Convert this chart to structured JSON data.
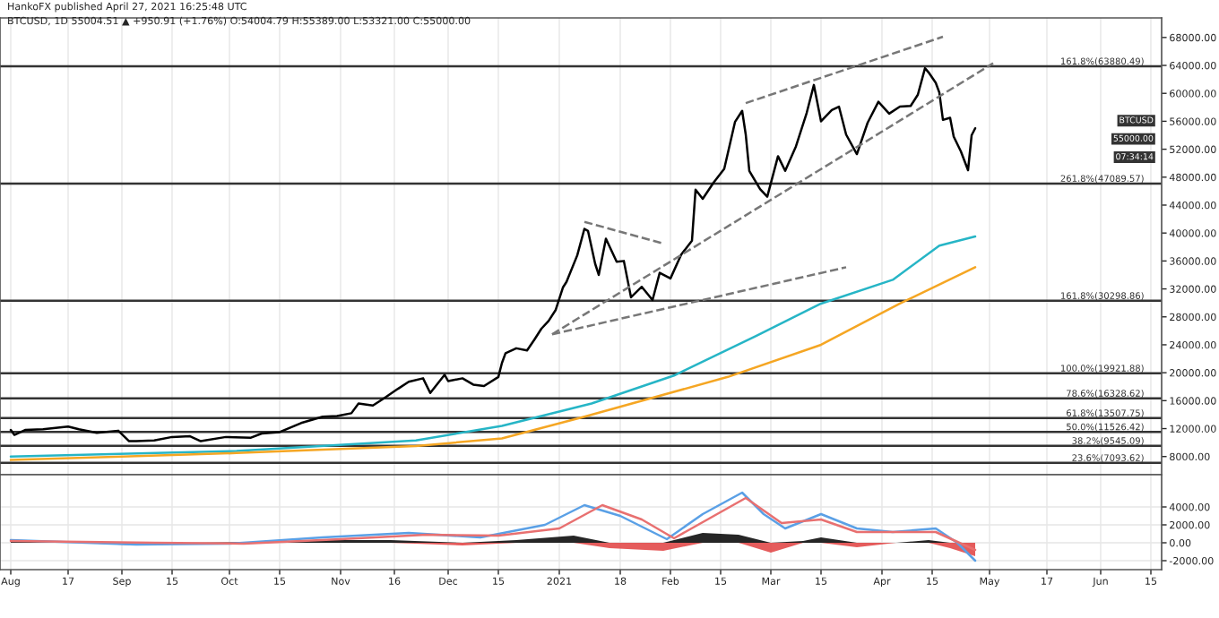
{
  "chart_data": [
    {
      "type": "line",
      "title": "BTCUSD, 1D 55004.51 ▲ +950.91 (+1.76%) O:54004.79 H:55389.00 L:53321.00 C:55000.00",
      "subtitle": "HankoFX published April 27, 2021 16:25:48 UTC",
      "series": [
        {
          "color": "#000000",
          "x": [
            "2020-08-01",
            "2020-08-02",
            "2020-08-05",
            "2020-08-10",
            "2020-08-17",
            "2020-08-20",
            "2020-08-25",
            "2020-08-31",
            "2020-09-03",
            "2020-09-05",
            "2020-09-10",
            "2020-09-15",
            "2020-09-20",
            "2020-09-23",
            "2020-09-30",
            "2020-10-07",
            "2020-10-10",
            "2020-10-15",
            "2020-10-21",
            "2020-10-27",
            "2020-10-31",
            "2020-11-04",
            "2020-11-06",
            "2020-11-10",
            "2020-11-13",
            "2020-11-17",
            "2020-11-20",
            "2020-11-24",
            "2020-11-26",
            "2020-11-30",
            "2020-12-01",
            "2020-12-05",
            "2020-12-08",
            "2020-12-11",
            "2020-12-15",
            "2020-12-16",
            "2020-12-17",
            "2020-12-20",
            "2020-12-23",
            "2020-12-25",
            "2020-12-27",
            "2020-12-29",
            "2020-12-31",
            "2021-01-02",
            "2021-01-03",
            "2021-01-06",
            "2021-01-08",
            "2021-01-09",
            "2021-01-11",
            "2021-01-12",
            "2021-01-14",
            "2021-01-17",
            "2021-01-19",
            "2021-01-21",
            "2021-01-24",
            "2021-01-27",
            "2021-01-29",
            "2021-02-01",
            "2021-02-04",
            "2021-02-07",
            "2021-02-08",
            "2021-02-10",
            "2021-02-13",
            "2021-02-16",
            "2021-02-19",
            "2021-02-21",
            "2021-02-22",
            "2021-02-23",
            "2021-02-26",
            "2021-02-28",
            "2021-03-03",
            "2021-03-05",
            "2021-03-08",
            "2021-03-11",
            "2021-03-13",
            "2021-03-15",
            "2021-03-18",
            "2021-03-20",
            "2021-03-22",
            "2021-03-25",
            "2021-03-28",
            "2021-03-31",
            "2021-04-03",
            "2021-04-06",
            "2021-04-09",
            "2021-04-11",
            "2021-04-13",
            "2021-04-14",
            "2021-04-16",
            "2021-04-17",
            "2021-04-18",
            "2021-04-20",
            "2021-04-21",
            "2021-04-23",
            "2021-04-25",
            "2021-04-26",
            "2021-04-27"
          ],
          "values": [
            11800,
            11100,
            11800,
            11900,
            12300,
            11900,
            11400,
            11700,
            10200,
            10200,
            10300,
            10800,
            10900,
            10200,
            10800,
            10700,
            11300,
            11500,
            12800,
            13700,
            13800,
            14200,
            15600,
            15300,
            16300,
            17700,
            18700,
            19200,
            17100,
            19700,
            18800,
            19200,
            18300,
            18100,
            19400,
            21400,
            22800,
            23500,
            23200,
            24700,
            26300,
            27400,
            29000,
            32200,
            33000,
            36800,
            40600,
            40300,
            35600,
            34000,
            39200,
            35900,
            36000,
            30800,
            32300,
            30400,
            34300,
            33500,
            36900,
            38900,
            46200,
            44900,
            47200,
            49200,
            55900,
            57500,
            54100,
            48900,
            46300,
            45200,
            51000,
            48900,
            52400,
            57200,
            61200,
            56000,
            57600,
            58100,
            54100,
            51300,
            55800,
            58800,
            57100,
            58100,
            58200,
            59800,
            63600,
            63000,
            61500,
            60100,
            56200,
            56500,
            53800,
            51700,
            49000,
            54000,
            55000
          ]
        },
        {
          "color": "#26b5c6",
          "x": [
            "2020-08-01",
            "2020-10-03",
            "2020-11-22",
            "2020-12-16",
            "2021-01-10",
            "2021-02-02",
            "2021-02-25",
            "2021-03-15",
            "2021-04-04",
            "2021-04-17",
            "2021-04-27"
          ],
          "values": [
            8000,
            8800,
            10300,
            12400,
            15600,
            19600,
            25300,
            29900,
            33300,
            38200,
            39500
          ]
        },
        {
          "color": "#f5a623",
          "x": [
            "2020-08-01",
            "2020-10-03",
            "2020-11-22",
            "2020-12-16",
            "2021-01-08",
            "2021-02-17",
            "2021-03-15",
            "2021-04-06",
            "2021-04-27"
          ],
          "values": [
            7500,
            8500,
            9500,
            10600,
            13700,
            19400,
            24000,
            29900,
            35100
          ]
        },
        {
          "type": "line",
          "color": "#777777",
          "line_style": "dashed",
          "x": [
            "2021-02-22",
            "2021-04-18"
          ],
          "values": [
            58600,
            68100
          ]
        },
        {
          "type": "line",
          "color": "#777777",
          "line_style": "dashed",
          "x": [
            "2020-12-30",
            "2021-05-02"
          ],
          "values": [
            25500,
            64300
          ]
        },
        {
          "type": "line",
          "color": "#777777",
          "line_style": "dashed",
          "x": [
            "2020-12-30",
            "2021-03-22"
          ],
          "values": [
            25500,
            35100
          ]
        },
        {
          "type": "line",
          "color": "#777777",
          "line_style": "dashed",
          "x": [
            "2021-01-08",
            "2021-01-30"
          ],
          "values": [
            41600,
            38500
          ]
        }
      ],
      "ref_lines": [
        {
          "axis": "y",
          "value": 63880.49,
          "label": "161.8%(63880.49)",
          "color": "#333333"
        },
        {
          "axis": "y",
          "value": 47089.57,
          "label": "261.8%(47089.57)",
          "color": "#333333"
        },
        {
          "axis": "y",
          "value": 30298.86,
          "label": "161.8%(30298.86)",
          "color": "#333333"
        },
        {
          "axis": "y",
          "value": 19921.88,
          "label": "100.0%(19921.88)",
          "color": "#333333"
        },
        {
          "axis": "y",
          "value": 16328.62,
          "label": "78.6%(16328.62)",
          "color": "#333333"
        },
        {
          "axis": "y",
          "value": 13507.75,
          "label": "61.8%(13507.75)",
          "color": "#333333"
        },
        {
          "axis": "y",
          "value": 11526.42,
          "label": "50.0%(11526.42)",
          "color": "#333333"
        },
        {
          "axis": "y",
          "value": 9545.09,
          "label": "38.2%(9545.09)",
          "color": "#333333"
        },
        {
          "axis": "y",
          "value": 7093.62,
          "label": "23.6%(7093.62)",
          "color": "#333333"
        }
      ],
      "annotations": [
        "BTCUSD",
        "55000.00",
        "07:34:14"
      ],
      "xlim": [
        "2020-07-29",
        "2021-06-18"
      ],
      "xticks": [
        {
          "value": "2020-08-01",
          "label": null
        },
        {
          "value": "2020-08-17",
          "label": null
        },
        {
          "value": "2020-09-01",
          "label": null
        },
        {
          "value": "2020-09-15",
          "label": null
        },
        {
          "value": "2020-10-01",
          "label": null
        },
        {
          "value": "2020-10-15",
          "label": null
        },
        {
          "value": "2020-11-01",
          "label": null
        },
        {
          "value": "2020-11-16",
          "label": null
        },
        {
          "value": "2020-12-01",
          "label": null
        },
        {
          "value": "2020-12-15",
          "label": null
        },
        {
          "value": "2021-01-01",
          "label": null
        },
        {
          "value": "2021-01-18",
          "label": null
        },
        {
          "value": "2021-02-01",
          "label": null
        },
        {
          "value": "2021-02-15",
          "label": null
        },
        {
          "value": "2021-03-01",
          "label": null
        },
        {
          "value": "2021-03-15",
          "label": null
        },
        {
          "value": "2021-04-01",
          "label": null
        },
        {
          "value": "2021-04-15",
          "label": null
        },
        {
          "value": "2021-05-01",
          "label": null
        },
        {
          "value": "2021-05-17",
          "label": null
        },
        {
          "value": "2021-06-01",
          "label": null
        },
        {
          "value": "2021-06-15",
          "label": null
        }
      ],
      "ylim": [
        5400,
        70800
      ],
      "yticks": [
        {
          "value": 8000,
          "label": "8000.00"
        },
        {
          "value": 12000,
          "label": "12000.00"
        },
        {
          "value": 16000,
          "label": "16000.00"
        },
        {
          "value": 20000,
          "label": "20000.00"
        },
        {
          "value": 24000,
          "label": "24000.00"
        },
        {
          "value": 28000,
          "label": "28000.00"
        },
        {
          "value": 32000,
          "label": "32000.00"
        },
        {
          "value": 36000,
          "label": "36000.00"
        },
        {
          "value": 40000,
          "label": "40000.00"
        },
        {
          "value": 44000,
          "label": "44000.00"
        },
        {
          "value": 48000,
          "label": "48000.00"
        },
        {
          "value": 52000,
          "label": "52000.00"
        },
        {
          "value": 56000,
          "label": "56000.00"
        },
        {
          "value": 60000,
          "label": "60000.00"
        },
        {
          "value": 64000,
          "label": "64000.00"
        },
        {
          "value": 68000,
          "label": "68000.00"
        }
      ],
      "tick_labels": "y",
      "grid": "x",
      "legend": false
    },
    {
      "type": "line",
      "series": [
        {
          "type": "area",
          "color": "#000000",
          "x": [
            "2020-08-01",
            "2020-08-20",
            "2020-09-05",
            "2020-09-20",
            "2020-10-10",
            "2020-10-25",
            "2020-11-15",
            "2020-12-05",
            "2020-12-20",
            "2021-01-05",
            "2021-01-15",
            "2021-01-30",
            "2021-02-10",
            "2021-02-20",
            "2021-03-01",
            "2021-03-10",
            "2021-03-15",
            "2021-03-25",
            "2021-04-05",
            "2021-04-14",
            "2021-04-20",
            "2021-04-27"
          ],
          "values": [
            200,
            100,
            0,
            0,
            100,
            300,
            300,
            0,
            300,
            800,
            0,
            0,
            1100,
            900,
            0,
            200,
            600,
            0,
            0,
            300,
            0,
            0
          ]
        },
        {
          "type": "area",
          "color": "#e04040",
          "x": [
            "2020-08-01",
            "2020-08-20",
            "2020-09-05",
            "2020-09-20",
            "2020-10-10",
            "2020-10-25",
            "2020-11-15",
            "2020-12-05",
            "2020-12-20",
            "2021-01-05",
            "2021-01-15",
            "2021-01-30",
            "2021-02-10",
            "2021-02-20",
            "2021-03-01",
            "2021-03-10",
            "2021-03-15",
            "2021-03-25",
            "2021-04-05",
            "2021-04-14",
            "2021-04-20",
            "2021-04-27"
          ],
          "values": [
            0,
            0,
            -300,
            -100,
            0,
            0,
            0,
            -300,
            0,
            0,
            -600,
            -900,
            0,
            0,
            -1100,
            0,
            0,
            -500,
            0,
            0,
            -600,
            -1500
          ]
        },
        {
          "type": "line",
          "color": "#5aa0e6",
          "x": [
            "2020-08-01",
            "2020-09-05",
            "2020-10-01",
            "2020-10-27",
            "2020-11-20",
            "2020-12-10",
            "2020-12-28",
            "2021-01-08",
            "2021-01-18",
            "2021-01-31",
            "2021-02-10",
            "2021-02-21",
            "2021-02-27",
            "2021-03-05",
            "2021-03-15",
            "2021-03-25",
            "2021-04-04",
            "2021-04-16",
            "2021-04-22",
            "2021-04-27"
          ],
          "values": [
            300,
            -200,
            -100,
            600,
            1100,
            600,
            2000,
            4200,
            3000,
            400,
            3200,
            5600,
            3200,
            1600,
            3200,
            1600,
            1200,
            1600,
            0,
            -2000
          ]
        },
        {
          "type": "line",
          "color": "#e87070",
          "x": [
            "2020-08-01",
            "2020-09-10",
            "2020-10-05",
            "2020-11-01",
            "2020-11-25",
            "2020-12-15",
            "2021-01-01",
            "2021-01-13",
            "2021-01-24",
            "2021-02-02",
            "2021-02-22",
            "2021-03-04",
            "2021-03-15",
            "2021-03-25",
            "2021-04-16",
            "2021-04-27"
          ],
          "values": [
            200,
            0,
            -100,
            400,
            900,
            800,
            1600,
            4200,
            2600,
            500,
            5000,
            2200,
            2600,
            1200,
            1200,
            -800
          ]
        }
      ],
      "xlim": [
        "2020-07-29",
        "2021-06-18"
      ],
      "xticks": [
        {
          "value": "2020-08-01",
          "label": "Aug"
        },
        {
          "value": "2020-08-17",
          "label": "17"
        },
        {
          "value": "2020-09-01",
          "label": "Sep"
        },
        {
          "value": "2020-09-15",
          "label": "15"
        },
        {
          "value": "2020-10-01",
          "label": "Oct"
        },
        {
          "value": "2020-10-15",
          "label": "15"
        },
        {
          "value": "2020-11-01",
          "label": "Nov"
        },
        {
          "value": "2020-11-16",
          "label": "16"
        },
        {
          "value": "2020-12-01",
          "label": "Dec"
        },
        {
          "value": "2020-12-15",
          "label": "15"
        },
        {
          "value": "2021-01-01",
          "label": "2021"
        },
        {
          "value": "2021-01-18",
          "label": "18"
        },
        {
          "value": "2021-02-01",
          "label": "Feb"
        },
        {
          "value": "2021-02-15",
          "label": "15"
        },
        {
          "value": "2021-03-01",
          "label": "Mar"
        },
        {
          "value": "2021-03-15",
          "label": "15"
        },
        {
          "value": "2021-04-01",
          "label": "Apr"
        },
        {
          "value": "2021-04-15",
          "label": "15"
        },
        {
          "value": "2021-05-01",
          "label": "May"
        },
        {
          "value": "2021-05-17",
          "label": "17"
        },
        {
          "value": "2021-06-01",
          "label": "Jun"
        },
        {
          "value": "2021-06-15",
          "label": "15"
        }
      ],
      "ylim": [
        -3000,
        7600
      ],
      "yticks": [
        {
          "value": -2000,
          "label": "-2000.00"
        },
        {
          "value": 0,
          "label": "0.00"
        },
        {
          "value": 2000,
          "label": "2000.00"
        },
        {
          "value": 4000,
          "label": "4000.00"
        }
      ],
      "grid": true,
      "legend": false
    }
  ]
}
